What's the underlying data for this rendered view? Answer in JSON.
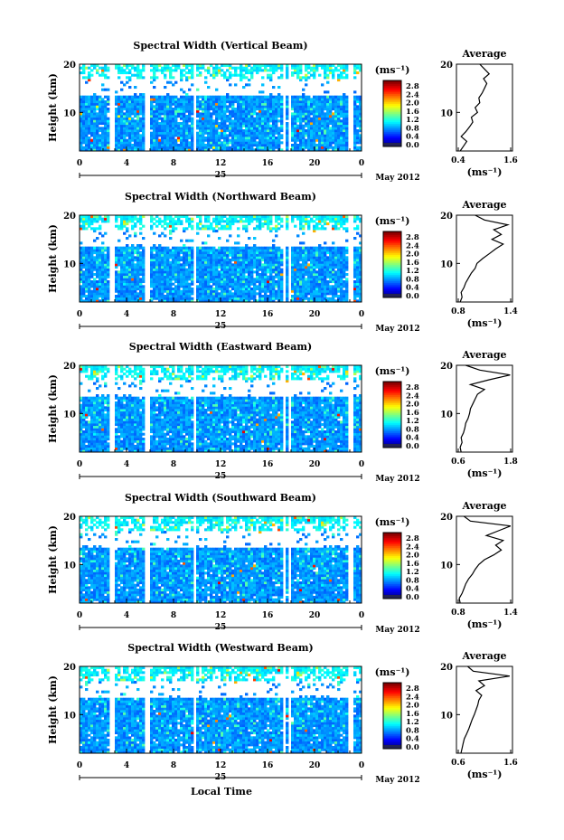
{
  "chart_data": [
    {
      "type": "heatmap",
      "title": "Spectral Width (Vertical Beam)",
      "ylabel": "Height (km)",
      "ylim": [
        2,
        20
      ],
      "yticks": [
        "20",
        "10"
      ],
      "xticks": [
        "0",
        "4",
        "8",
        "12",
        "16",
        "20",
        "0"
      ],
      "date_label": "25",
      "month_label": "May 2012",
      "colorbar": {
        "unit": "(ms⁻¹)",
        "ticks": [
          "2.8",
          "2.4",
          "2.0",
          "1.6",
          "1.2",
          "0.8",
          "0.4",
          "0.0"
        ]
      },
      "gaps_hours": [
        [
          2.5,
          2.9
        ],
        [
          5.5,
          5.9
        ],
        [
          9.6,
          10.0
        ],
        [
          17.2,
          17.5
        ],
        [
          17.7,
          18.0
        ],
        [
          22.9,
          23.3
        ]
      ],
      "average": {
        "title": "Average",
        "xlabel": "(ms⁻¹)",
        "xticks": [
          "0.4",
          "1.6"
        ],
        "xlim": [
          0.4,
          1.6
        ],
        "yticks": [
          "20",
          "10"
        ],
        "heights": [
          2,
          3,
          4,
          5,
          6,
          7,
          8,
          9,
          10,
          11,
          12,
          13,
          14,
          15,
          16,
          17,
          18,
          19,
          20
        ],
        "values": [
          0.48,
          0.55,
          0.62,
          0.5,
          0.6,
          0.68,
          0.75,
          0.72,
          0.85,
          0.8,
          0.9,
          0.88,
          0.95,
          1.0,
          1.05,
          0.98,
          1.1,
          1.0,
          0.9
        ]
      }
    },
    {
      "type": "heatmap",
      "title": "Spectral Width (Northward Beam)",
      "ylabel": "Height (km)",
      "ylim": [
        2,
        20
      ],
      "yticks": [
        "20",
        "10"
      ],
      "xticks": [
        "0",
        "4",
        "8",
        "12",
        "16",
        "20",
        "0"
      ],
      "date_label": "25",
      "month_label": "May 2012",
      "colorbar": {
        "unit": "(ms⁻¹)",
        "ticks": [
          "2.8",
          "2.4",
          "2.0",
          "1.6",
          "1.2",
          "0.8",
          "0.4",
          "0.0"
        ]
      },
      "gaps_hours": [
        [
          2.5,
          2.9
        ],
        [
          5.5,
          5.9
        ],
        [
          9.6,
          10.0
        ],
        [
          17.2,
          17.5
        ],
        [
          17.7,
          18.0
        ],
        [
          22.9,
          23.3
        ]
      ],
      "average": {
        "title": "Average",
        "xlabel": "(ms⁻¹)",
        "xticks": [
          "0.8",
          "1.4"
        ],
        "xlim": [
          0.8,
          1.4
        ],
        "yticks": [
          "20",
          "10"
        ],
        "heights": [
          2,
          3,
          4,
          5,
          6,
          7,
          8,
          9,
          10,
          11,
          12,
          13,
          14,
          15,
          16,
          17,
          18,
          19,
          20
        ],
        "values": [
          0.84,
          0.86,
          0.85,
          0.88,
          0.9,
          0.93,
          0.96,
          1.0,
          1.02,
          1.08,
          1.15,
          1.22,
          1.3,
          1.18,
          1.28,
          1.2,
          1.35,
          1.1,
          1.0
        ]
      }
    },
    {
      "type": "heatmap",
      "title": "Spectral Width (Eastward Beam)",
      "ylabel": "Height (km)",
      "ylim": [
        2,
        20
      ],
      "yticks": [
        "20",
        "10"
      ],
      "xticks": [
        "0",
        "4",
        "8",
        "12",
        "16",
        "20",
        "0"
      ],
      "date_label": "25",
      "month_label": "May 2012",
      "colorbar": {
        "unit": "(ms⁻¹)",
        "ticks": [
          "2.8",
          "2.4",
          "2.0",
          "1.6",
          "1.2",
          "0.8",
          "0.4",
          "0.0"
        ]
      },
      "gaps_hours": [
        [
          2.5,
          2.9
        ],
        [
          5.5,
          5.9
        ],
        [
          9.6,
          10.0
        ],
        [
          17.2,
          17.5
        ],
        [
          17.7,
          18.0
        ],
        [
          22.9,
          23.3
        ]
      ],
      "average": {
        "title": "Average",
        "xlabel": "(ms⁻¹)",
        "xticks": [
          "0.6",
          "1.8"
        ],
        "xlim": [
          0.6,
          1.8
        ],
        "yticks": [
          "20",
          "10"
        ],
        "heights": [
          2,
          3,
          4,
          5,
          6,
          7,
          8,
          9,
          10,
          11,
          12,
          13,
          14,
          15,
          16,
          17,
          18,
          19,
          20
        ],
        "values": [
          0.7,
          0.68,
          0.72,
          0.7,
          0.75,
          0.78,
          0.8,
          0.85,
          0.88,
          0.9,
          0.95,
          1.0,
          1.05,
          1.2,
          0.9,
          1.3,
          1.75,
          1.1,
          0.8
        ]
      }
    },
    {
      "type": "heatmap",
      "title": "Spectral Width (Southward Beam)",
      "ylabel": "Height (km)",
      "ylim": [
        2,
        20
      ],
      "yticks": [
        "20",
        "10"
      ],
      "xticks": [
        "0",
        "4",
        "8",
        "12",
        "16",
        "20",
        "0"
      ],
      "date_label": "25",
      "month_label": "May 2012",
      "colorbar": {
        "unit": "(ms⁻¹)",
        "ticks": [
          "2.8",
          "2.4",
          "2.0",
          "1.6",
          "1.2",
          "0.8",
          "0.4",
          "0.0"
        ]
      },
      "gaps_hours": [
        [
          2.5,
          2.9
        ],
        [
          5.5,
          5.9
        ],
        [
          9.6,
          10.0
        ],
        [
          17.2,
          17.5
        ],
        [
          17.7,
          18.0
        ],
        [
          22.9,
          23.3
        ]
      ],
      "average": {
        "title": "Average",
        "xlabel": "(ms⁻¹)",
        "xticks": [
          "0.8",
          "1.4"
        ],
        "xlim": [
          0.8,
          1.4
        ],
        "yticks": [
          "20",
          "10"
        ],
        "heights": [
          2,
          3,
          4,
          5,
          6,
          7,
          8,
          9,
          10,
          11,
          12,
          13,
          14,
          15,
          16,
          17,
          18,
          19,
          20
        ],
        "values": [
          0.84,
          0.83,
          0.86,
          0.88,
          0.9,
          0.93,
          0.97,
          1.0,
          1.04,
          1.1,
          1.2,
          1.28,
          1.22,
          1.3,
          1.12,
          1.25,
          1.38,
          0.95,
          0.88
        ]
      }
    },
    {
      "type": "heatmap",
      "title": "Spectral Width (Westward Beam)",
      "ylabel": "Height (km)",
      "ylim": [
        2,
        20
      ],
      "yticks": [
        "20",
        "10"
      ],
      "xticks": [
        "0",
        "4",
        "8",
        "12",
        "16",
        "20",
        "0"
      ],
      "date_label": "25",
      "month_label": "May 2012",
      "xlabel": "Local Time",
      "colorbar": {
        "unit": "(ms⁻¹)",
        "ticks": [
          "2.8",
          "2.4",
          "2.0",
          "1.6",
          "1.2",
          "0.8",
          "0.4",
          "0.0"
        ]
      },
      "gaps_hours": [
        [
          2.5,
          2.9
        ],
        [
          5.5,
          5.9
        ],
        [
          9.6,
          10.0
        ],
        [
          17.2,
          17.5
        ],
        [
          17.7,
          18.0
        ],
        [
          22.9,
          23.3
        ]
      ],
      "average": {
        "title": "Average",
        "xlabel": "(ms⁻¹)",
        "xticks": [
          "0.6",
          "1.6"
        ],
        "xlim": [
          0.6,
          1.6
        ],
        "yticks": [
          "20",
          "10"
        ],
        "heights": [
          2,
          3,
          4,
          5,
          6,
          7,
          8,
          9,
          10,
          11,
          12,
          13,
          14,
          15,
          16,
          17,
          18,
          19,
          20
        ],
        "values": [
          0.68,
          0.7,
          0.72,
          0.74,
          0.78,
          0.82,
          0.85,
          0.88,
          0.92,
          0.95,
          0.98,
          1.0,
          1.05,
          0.95,
          1.1,
          1.0,
          1.55,
          0.9,
          0.8
        ]
      }
    }
  ]
}
